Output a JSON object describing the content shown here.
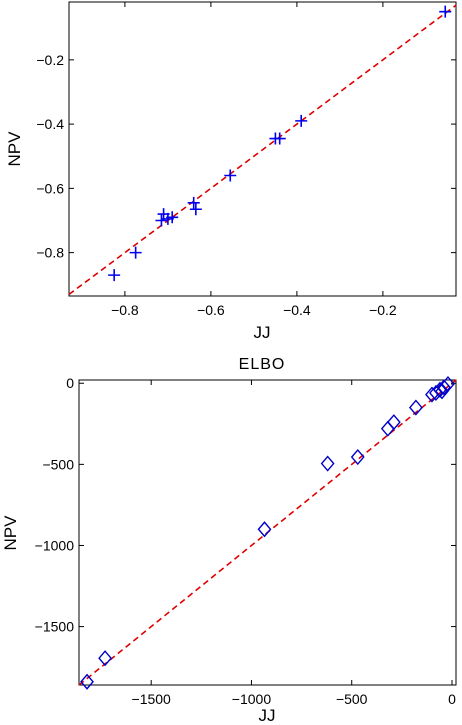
{
  "chart_data": [
    {
      "type": "scatter",
      "title": "",
      "xlabel": "JJ",
      "ylabel": "NPV",
      "xlim": [
        -0.93,
        -0.03
      ],
      "ylim": [
        -0.935,
        -0.02
      ],
      "xticks": [
        -0.8,
        -0.6,
        -0.4,
        -0.2
      ],
      "xtick_labels": [
        "−0.8",
        "−0.6",
        "−0.4",
        "−0.2"
      ],
      "yticks": [
        -0.8,
        -0.6,
        -0.4,
        -0.2
      ],
      "ytick_labels": [
        "−0.8",
        "−0.6",
        "−0.4",
        "−0.2"
      ],
      "grid": false,
      "marker": "plus",
      "marker_color": "#0000ee",
      "reference_line": {
        "from": [
          -0.93,
          -0.93
        ],
        "to": [
          -0.03,
          -0.03
        ],
        "style": "dashed",
        "color": "#e00000"
      },
      "x": [
        -0.825,
        -0.775,
        -0.715,
        -0.71,
        -0.7,
        -0.69,
        -0.64,
        -0.635,
        -0.555,
        -0.45,
        -0.44,
        -0.39,
        -0.055
      ],
      "y": [
        -0.87,
        -0.8,
        -0.7,
        -0.68,
        -0.695,
        -0.69,
        -0.645,
        -0.665,
        -0.56,
        -0.445,
        -0.445,
        -0.39,
        -0.05
      ]
    },
    {
      "type": "scatter",
      "title": "ELBO",
      "xlabel": "JJ",
      "ylabel": "NPV",
      "xlim": [
        -1860,
        20
      ],
      "ylim": [
        -1860,
        20
      ],
      "xticks": [
        -1500,
        -1000,
        -500,
        0
      ],
      "xtick_labels": [
        "−1500",
        "−1000",
        "−500",
        "0"
      ],
      "yticks": [
        -1500,
        -1000,
        -500,
        0
      ],
      "ytick_labels": [
        "−1500",
        "−1000",
        "−500",
        "0"
      ],
      "grid": false,
      "marker": "diamond",
      "marker_color": "#0000cc",
      "reference_line": {
        "from": [
          -1860,
          -1860
        ],
        "to": [
          20,
          20
        ],
        "style": "dashed",
        "color": "#e00000"
      },
      "x": [
        -1820,
        -1730,
        -935,
        -620,
        -470,
        -320,
        -290,
        -180,
        -100,
        -80,
        -60,
        -50,
        -40,
        -20
      ],
      "y": [
        -1840,
        -1695,
        -900,
        -495,
        -455,
        -280,
        -240,
        -150,
        -70,
        -60,
        -40,
        -50,
        -25,
        -5
      ]
    }
  ]
}
